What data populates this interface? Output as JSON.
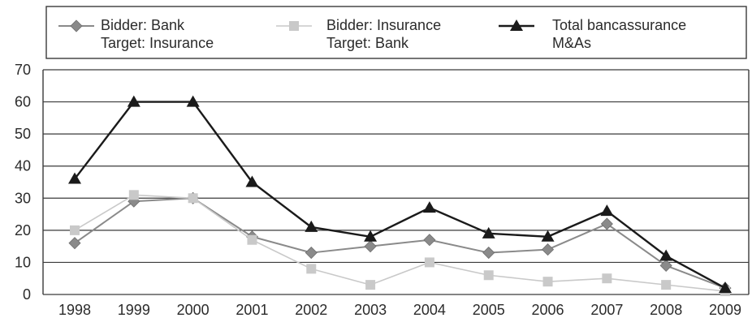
{
  "chart_data": {
    "type": "line",
    "title": "",
    "xlabel": "",
    "ylabel": "",
    "ylim": [
      0,
      70
    ],
    "y_ticks": [
      0,
      10,
      20,
      30,
      40,
      50,
      60,
      70
    ],
    "grid": "horizontal",
    "legend_position": "top",
    "categories": [
      "1998",
      "1999",
      "2000",
      "2001",
      "2002",
      "2003",
      "2004",
      "2005",
      "2006",
      "2007",
      "2008",
      "2009"
    ],
    "series": [
      {
        "name": "Bidder: Bank Target: Insurance",
        "legend_lines": [
          "Bidder: Bank",
          "Target: Insurance"
        ],
        "marker": "diamond",
        "color": "#8a8a8a",
        "values": [
          16,
          29,
          30,
          18,
          13,
          15,
          17,
          13,
          14,
          22,
          9,
          2
        ]
      },
      {
        "name": "Bidder: Insurance Target: Bank",
        "legend_lines": [
          "Bidder: Insurance",
          "Target: Bank"
        ],
        "marker": "square",
        "color": "#c9c9c9",
        "values": [
          20,
          31,
          30,
          17,
          8,
          3,
          10,
          6,
          4,
          5,
          3,
          1
        ]
      },
      {
        "name": "Total bancassurance M&As",
        "legend_lines": [
          "Total bancassurance",
          "M&As"
        ],
        "marker": "triangle",
        "color": "#1a1a1a",
        "values": [
          36,
          60,
          60,
          35,
          21,
          18,
          27,
          19,
          18,
          26,
          12,
          2
        ]
      }
    ]
  }
}
